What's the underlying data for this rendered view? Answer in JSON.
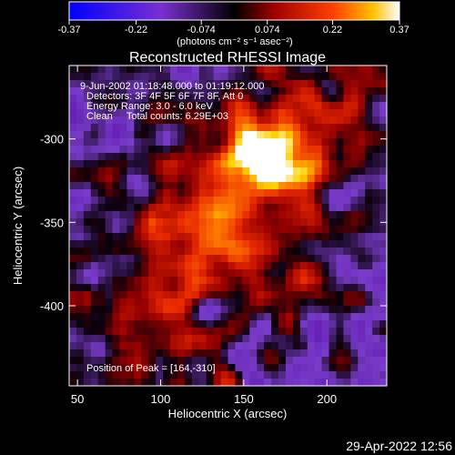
{
  "colorbar": {
    "ticks": [
      "-0.37",
      "-0.22",
      "-0.074",
      "0.074",
      "0.22",
      "0.37"
    ],
    "tick_values": [
      -0.37,
      -0.22,
      -0.074,
      0.074,
      0.22,
      0.37
    ],
    "range": [
      -0.37,
      0.37
    ],
    "unit_label": "(photons cm⁻² s⁻¹ asec⁻²)"
  },
  "chart_data": {
    "type": "heatmap",
    "title": "Reconstructed RHESSI Image",
    "xlabel": "Heliocentric X (arcsec)",
    "ylabel": "Heliocentric Y (arcsec)",
    "xlim": [
      45,
      236
    ],
    "ylim": [
      -448,
      -256
    ],
    "x_ticks": [
      50,
      100,
      150,
      200
    ],
    "y_ticks": [
      -300,
      -350,
      -400
    ],
    "annotations": [
      "9-Jun-2002 01:18:48.000 to 01:19:12.000",
      "Detectors: 3F 4F 5F 6F 7F 8F, Att 0",
      "Energy Range: 3.0 - 6.0 keV",
      "Clean     Total counts: 6.29E+03"
    ],
    "peak_label": "Position of Peak = [164,-310]",
    "peak": [
      164,
      -310
    ],
    "peak_value": 0.37,
    "color_scale": [
      "#0000ff",
      "#6a1b9a",
      "#8a2be2",
      "#000000",
      "#b00000",
      "#ff4000",
      "#ffcc00",
      "#ffffff"
    ]
  },
  "footer": {
    "timestamp": "29-Apr-2022 12:56"
  }
}
